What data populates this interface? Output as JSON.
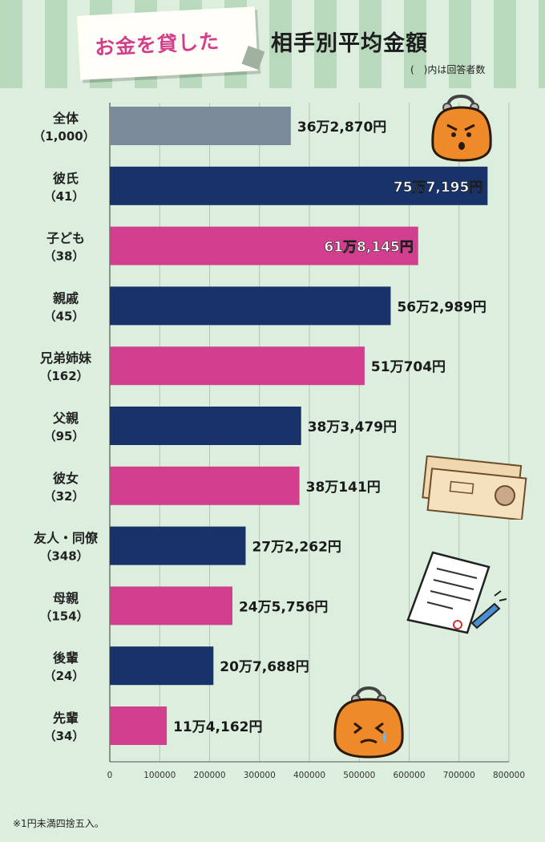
{
  "title": {
    "highlight": "お金を貸した",
    "main": "相手別平均金額",
    "note": "(　)内は回答者数"
  },
  "footnote": "※1円未満四捨五入。",
  "colors": {
    "gray": "#7b8b9a",
    "navy": "#17336a",
    "pink": "#d23f8f",
    "background": "#dcefde",
    "stripe": "#b9d9bd"
  },
  "icons": [
    "coin-purse-angry-icon",
    "banknotes-icon",
    "document-pen-icon",
    "coin-purse-crying-icon"
  ],
  "chart_data": {
    "type": "bar",
    "orientation": "horizontal",
    "categories": [
      "全体",
      "彼氏",
      "子ども",
      "親戚",
      "兄弟姉妹",
      "父親",
      "彼女",
      "友人・同僚",
      "母親",
      "後輩",
      "先輩"
    ],
    "respondents": [
      "（1,000）",
      "（41）",
      "（38）",
      "（45）",
      "（162）",
      "（95）",
      "（32）",
      "（348）",
      "（154）",
      "（24）",
      "（34）"
    ],
    "values": [
      362870,
      757195,
      618145,
      562989,
      510704,
      383479,
      380141,
      272262,
      245756,
      207688,
      114162
    ],
    "value_labels": [
      "36万2,870円",
      "75万7,195円",
      "61万8,145円",
      "56万2,989円",
      "51万704円",
      "38万3,479円",
      "38万141円",
      "27万2,262円",
      "24万5,756円",
      "20万7,688円",
      "11万4,162円"
    ],
    "bar_colors": [
      "#7b8b9a",
      "#17336a",
      "#d23f8f",
      "#17336a",
      "#d23f8f",
      "#17336a",
      "#d23f8f",
      "#17336a",
      "#d23f8f",
      "#17336a",
      "#d23f8f"
    ],
    "xlim": [
      0,
      800000
    ],
    "xticks": [
      0,
      100000,
      200000,
      300000,
      400000,
      500000,
      600000,
      700000,
      800000
    ],
    "xtick_labels": [
      "0",
      "100000",
      "200000",
      "300000",
      "400000",
      "500000",
      "600000",
      "700000",
      "800000"
    ],
    "grid": true
  }
}
